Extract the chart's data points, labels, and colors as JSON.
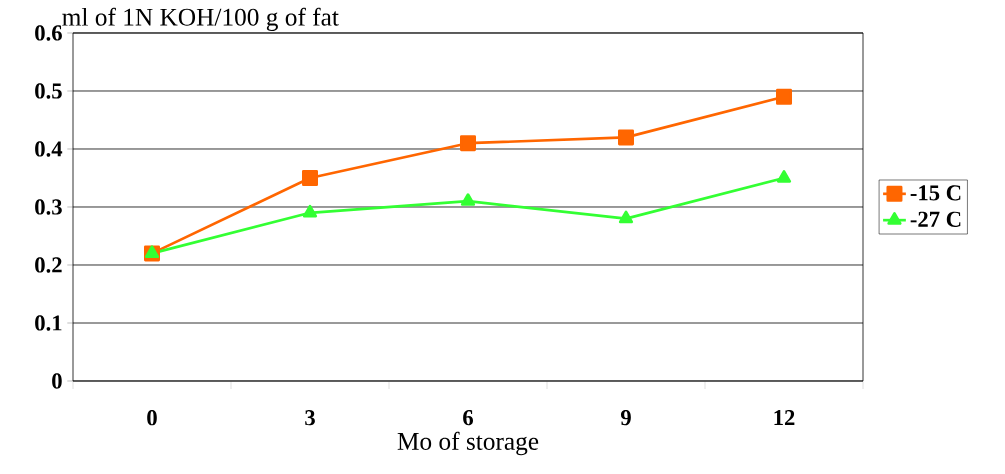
{
  "chart_data": {
    "type": "line",
    "ylabel": "ml of 1N KOH/100 g of fat",
    "xlabel": "Mo of storage",
    "categories": [
      "0",
      "3",
      "6",
      "9",
      "12"
    ],
    "series": [
      {
        "name": "-15 C",
        "color": "#ff6600",
        "marker": "square",
        "values": [
          0.22,
          0.35,
          0.41,
          0.42,
          0.49
        ]
      },
      {
        "name": "-27 C",
        "color": "#33ff33",
        "marker": "triangle",
        "values": [
          0.22,
          0.29,
          0.31,
          0.28,
          0.35
        ]
      }
    ],
    "ylim": [
      0,
      0.6
    ],
    "yticks": [
      0,
      0.1,
      0.2,
      0.3,
      0.4,
      0.5,
      0.6
    ],
    "grid": "y",
    "legend": "right"
  }
}
